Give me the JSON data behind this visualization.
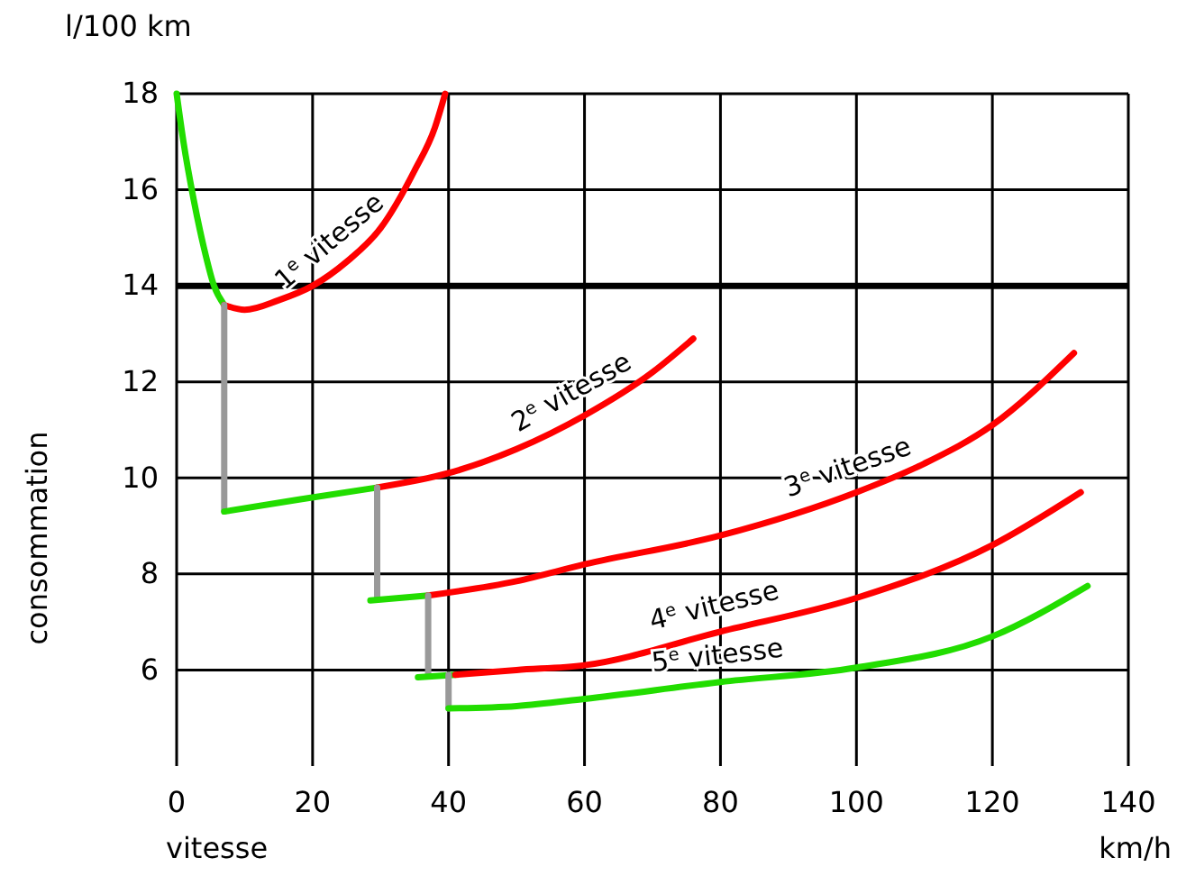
{
  "chart_data": {
    "type": "line",
    "xlabel": "vitesse",
    "ylabel": "consommation",
    "annotations": [
      "l/100 km",
      "km/h"
    ],
    "xlim": [
      0,
      140
    ],
    "xticks": [
      0,
      20,
      40,
      60,
      80,
      100,
      120,
      140
    ],
    "ylim": [
      4,
      18
    ],
    "yticks": [
      6,
      8,
      10,
      12,
      14,
      16,
      18
    ],
    "grid": true,
    "ref_lines": [
      {
        "axis": "y",
        "value": 14,
        "color": "#000000"
      }
    ],
    "series": [
      {
        "color": "#22dd00",
        "x": [
          0,
          1,
          2.5,
          4,
          5.5,
          7
        ],
        "values": [
          18,
          17,
          15.8,
          14.8,
          14,
          13.6
        ]
      },
      {
        "name": "1$^{e}$ vitesse",
        "color": "#ff0000",
        "x": [
          7,
          10,
          15,
          20,
          25,
          30,
          35,
          38,
          39.5
        ],
        "values": [
          13.6,
          13.5,
          13.7,
          14,
          14.5,
          15.2,
          16.4,
          17.3,
          18
        ]
      },
      {
        "color": "#999999",
        "x": [
          7,
          7
        ],
        "values": [
          13.6,
          9.3
        ]
      },
      {
        "color": "#22dd00",
        "x": [
          7,
          18,
          29.5
        ],
        "values": [
          9.3,
          9.55,
          9.8
        ]
      },
      {
        "name": "2$^{e}$ vitesse",
        "color": "#ff0000",
        "x": [
          29.5,
          40,
          50,
          60,
          70,
          76
        ],
        "values": [
          9.8,
          10.1,
          10.6,
          11.3,
          12.2,
          12.9
        ]
      },
      {
        "color": "#999999",
        "x": [
          29.5,
          29.5
        ],
        "values": [
          9.8,
          7.5
        ]
      },
      {
        "color": "#22dd00",
        "x": [
          28.5,
          37
        ],
        "values": [
          7.45,
          7.55
        ]
      },
      {
        "name": "3$^{e}$ vitesse",
        "color": "#ff0000",
        "x": [
          37,
          50,
          60,
          80,
          100,
          110,
          120,
          132
        ],
        "values": [
          7.55,
          7.85,
          8.2,
          8.8,
          9.7,
          10.3,
          11.1,
          12.6
        ]
      },
      {
        "color": "#999999",
        "x": [
          37,
          37
        ],
        "values": [
          7.55,
          5.9
        ]
      },
      {
        "color": "#22dd00",
        "x": [
          35.5,
          41
        ],
        "values": [
          5.85,
          5.9
        ]
      },
      {
        "name": "4$^{e}$ vitesse",
        "color": "#ff0000",
        "x": [
          41,
          50,
          60,
          80,
          100,
          120,
          133
        ],
        "values": [
          5.9,
          6,
          6.1,
          6.8,
          7.5,
          8.6,
          9.7
        ]
      },
      {
        "color": "#999999",
        "x": [
          40,
          40
        ],
        "values": [
          5.9,
          5.2
        ]
      },
      {
        "name": "5$^{e}$ vitesse",
        "color": "#22dd00",
        "x": [
          40,
          50,
          60,
          80,
          100,
          120,
          134
        ],
        "values": [
          5.2,
          5.25,
          5.4,
          5.75,
          6.05,
          6.7,
          7.75
        ]
      }
    ]
  }
}
